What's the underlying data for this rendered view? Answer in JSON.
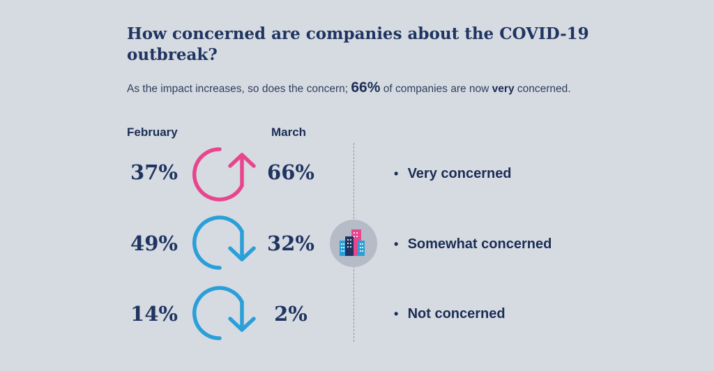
{
  "title": "How concerned are companies about the COVID-19 outbreak?",
  "subtitle": {
    "part1": "As the impact increases, so does the concern; ",
    "highlight": "66%",
    "part2": " of companies are now ",
    "bold": "very",
    "part3": " concerned."
  },
  "columns": {
    "left": "February",
    "right": "March"
  },
  "colors": {
    "increase": "#e8468c",
    "decrease": "#2a9fd8",
    "text": "#1f3460",
    "background": "#d6dbe2"
  },
  "chart_data": {
    "type": "table",
    "title": "How concerned are companies about the COVID-19 outbreak?",
    "columns": [
      "February",
      "March"
    ],
    "rows": [
      {
        "category": "Very concerned",
        "february": 37,
        "march": 66,
        "february_label": "37%",
        "march_label": "66%",
        "trend": "up"
      },
      {
        "category": "Somewhat concerned",
        "february": 49,
        "march": 32,
        "february_label": "49%",
        "march_label": "32%",
        "trend": "down"
      },
      {
        "category": "Not concerned",
        "february": 14,
        "march": 2,
        "february_label": "14%",
        "march_label": "2%",
        "trend": "down"
      }
    ]
  },
  "icons": {
    "trend_up": "arrow-up-cycle-icon",
    "trend_down": "arrow-down-cycle-icon",
    "center": "buildings-icon"
  }
}
